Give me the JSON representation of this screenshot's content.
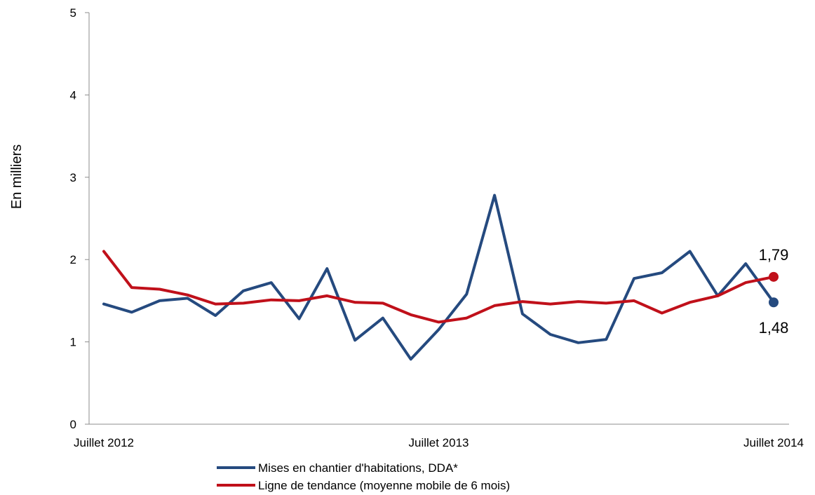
{
  "chart_data": {
    "type": "line",
    "title": "",
    "xlabel": "",
    "ylabel": "En milliers",
    "ylim": [
      0,
      5
    ],
    "yticks": [
      "0",
      "1",
      "2",
      "3",
      "4",
      "5"
    ],
    "x_tick_labels": [
      "Juillet 2012",
      "Juillet 2013",
      "Juillet 2014"
    ],
    "x_tick_positions": [
      0,
      12,
      24
    ],
    "grid": false,
    "legend_position": "bottom",
    "series": [
      {
        "name": "Mises en chantier d'habitations, DDA*",
        "color": "#254a7f",
        "values": [
          1.46,
          1.36,
          1.5,
          1.53,
          1.32,
          1.62,
          1.72,
          1.28,
          1.89,
          1.02,
          1.29,
          0.79,
          1.15,
          1.58,
          2.78,
          1.34,
          1.09,
          0.99,
          1.03,
          1.77,
          1.84,
          2.1,
          1.56,
          1.95,
          1.48
        ],
        "end_label": "1,48"
      },
      {
        "name": "Ligne de tendance (moyenne mobile de 6 mois)",
        "color": "#c0101a",
        "values": [
          2.1,
          1.66,
          1.64,
          1.57,
          1.46,
          1.47,
          1.51,
          1.5,
          1.56,
          1.48,
          1.47,
          1.33,
          1.24,
          1.29,
          1.44,
          1.49,
          1.46,
          1.49,
          1.47,
          1.5,
          1.35,
          1.48,
          1.56,
          1.72,
          1.79
        ],
        "end_label": "1,79"
      }
    ]
  }
}
